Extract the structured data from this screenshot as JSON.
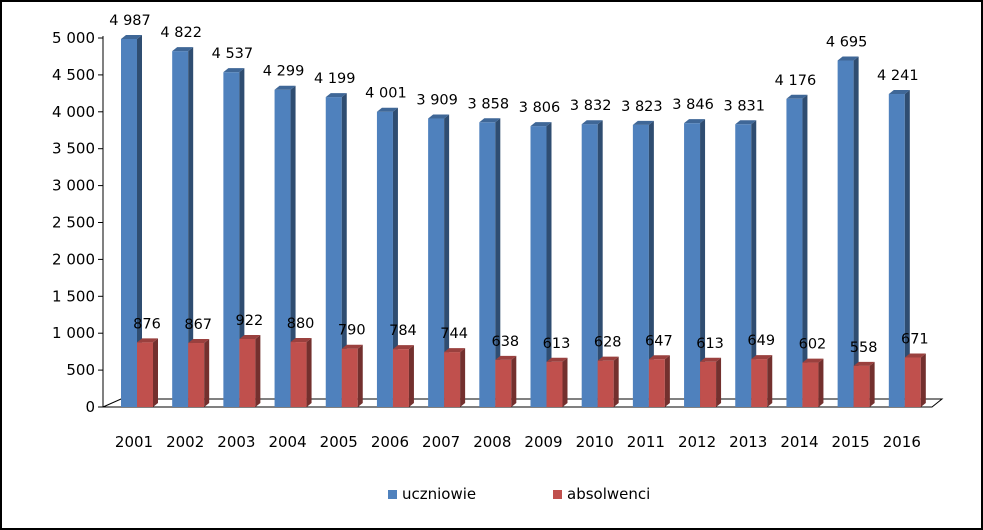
{
  "chart_data": {
    "type": "bar",
    "categories": [
      "2001",
      "2002",
      "2003",
      "2004",
      "2005",
      "2006",
      "2007",
      "2008",
      "2009",
      "2010",
      "2011",
      "2012",
      "2013",
      "2014",
      "2015",
      "2016"
    ],
    "series": [
      {
        "name": "uczniowie",
        "color": "#4F81BD",
        "values": [
          4987,
          4822,
          4537,
          4299,
          4199,
          4001,
          3909,
          3858,
          3806,
          3832,
          3823,
          3846,
          3831,
          4176,
          4695,
          4241
        ],
        "labels": [
          "4 987",
          "4 822",
          "4 537",
          "4 299",
          "4 199",
          "4 001",
          "3 909",
          "3 858",
          "3 806",
          "3 832",
          "3 823",
          "3 846",
          "3 831",
          "4 176",
          "4 695",
          "4 241"
        ]
      },
      {
        "name": "absolwenci",
        "color": "#C0504D",
        "values": [
          876,
          867,
          922,
          880,
          790,
          784,
          744,
          638,
          613,
          628,
          647,
          613,
          649,
          602,
          558,
          671
        ],
        "labels": [
          "876",
          "867",
          "922",
          "880",
          "790",
          "784",
          "744",
          "638",
          "613",
          "628",
          "647",
          "613",
          "649",
          "602",
          "558",
          "671"
        ]
      }
    ],
    "ylim": [
      0,
      5000
    ],
    "yticks": [
      0,
      500,
      1000,
      1500,
      2000,
      2500,
      3000,
      3500,
      4000,
      4500,
      5000
    ],
    "ytick_labels": [
      "0",
      "500",
      "1 000",
      "1 500",
      "2 000",
      "2 500",
      "3 000",
      "3 500",
      "4 000",
      "4 500",
      "5 000"
    ],
    "grid": false,
    "legend_position": "bottom",
    "title": "",
    "xlabel": "",
    "ylabel": ""
  }
}
